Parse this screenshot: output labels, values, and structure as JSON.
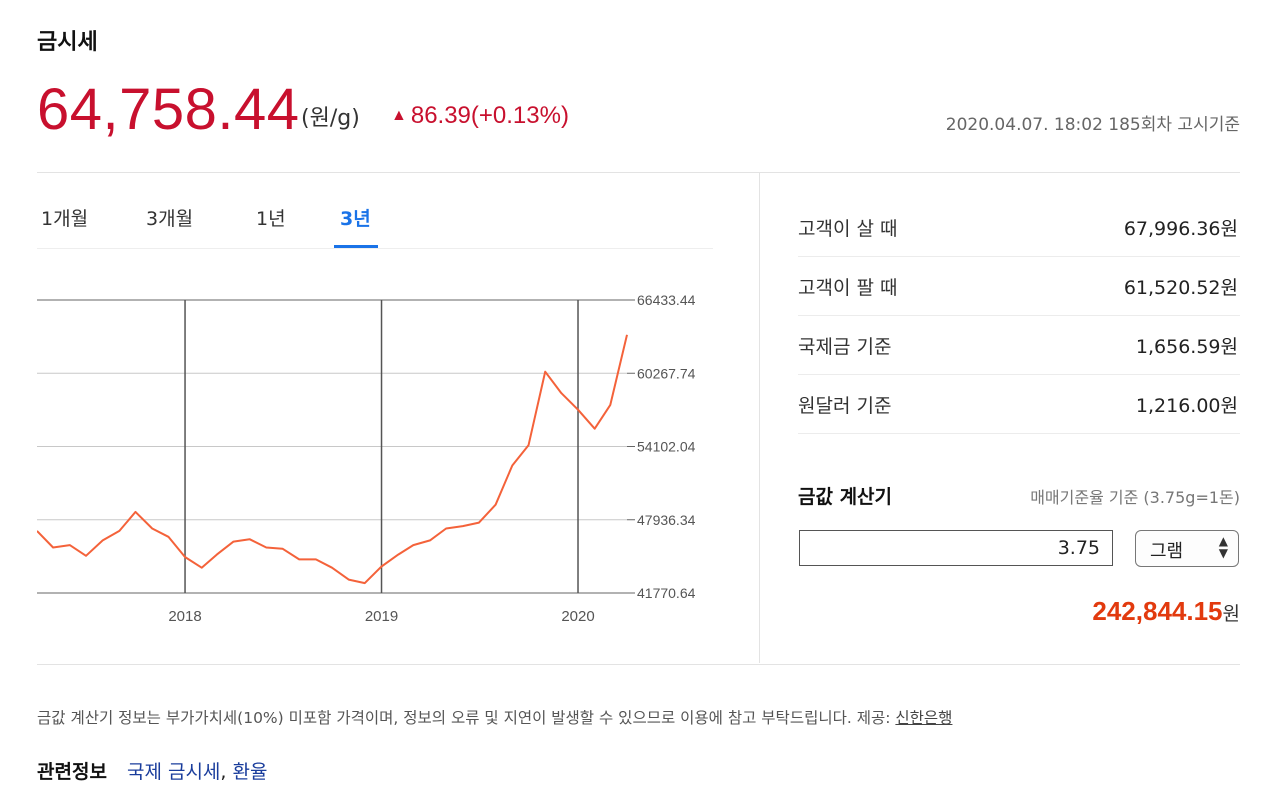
{
  "title": "금시세",
  "price": {
    "value": "64,758.44",
    "unit": "(원/g)",
    "change_symbol": "▲",
    "change": "86.39(+0.13%)",
    "timestamp": "2020.04.07. 18:02 185회차 고시기준",
    "up_color": "#c8102e"
  },
  "tabs": [
    {
      "label": "1개월",
      "active": false
    },
    {
      "label": "3개월",
      "active": false
    },
    {
      "label": "1년",
      "active": false
    },
    {
      "label": "3년",
      "active": true
    }
  ],
  "chart_data": {
    "type": "line",
    "title": "",
    "xlabel": "",
    "ylabel": "",
    "x_tick_labels": [
      "2018",
      "2019",
      "2020"
    ],
    "y_tick_labels": [
      "66433.44",
      "60267.74",
      "54102.04",
      "47936.34",
      "41770.64"
    ],
    "ylim": [
      41770.64,
      66433.44
    ],
    "grid": true,
    "line_color": "#f4623a",
    "series": [
      {
        "x": [
          "2017-04",
          "2017-05",
          "2017-06",
          "2017-07",
          "2017-08",
          "2017-09",
          "2017-10",
          "2017-11",
          "2017-12",
          "2018-01",
          "2018-02",
          "2018-03",
          "2018-04",
          "2018-05",
          "2018-06",
          "2018-07",
          "2018-08",
          "2018-09",
          "2018-10",
          "2018-11",
          "2018-12",
          "2019-01",
          "2019-02",
          "2019-03",
          "2019-04",
          "2019-05",
          "2019-06",
          "2019-07",
          "2019-08",
          "2019-09",
          "2019-10",
          "2019-11",
          "2019-12",
          "2020-01",
          "2020-02",
          "2020-03",
          "2020-04"
        ],
        "values": [
          47000,
          45600,
          45800,
          44900,
          46200,
          47000,
          48600,
          47200,
          46500,
          44800,
          43900,
          45000,
          46100,
          46300,
          45600,
          45500,
          44600,
          44600,
          43900,
          42900,
          42600,
          44000,
          45000,
          45800,
          46200,
          47200,
          47400,
          47700,
          49200,
          52500,
          54200,
          60400,
          58600,
          57200,
          55600,
          57600,
          63500
        ]
      }
    ]
  },
  "quotes": [
    {
      "label": "고객이 살 때",
      "value": "67,996.36원"
    },
    {
      "label": "고객이 팔 때",
      "value": "61,520.52원"
    },
    {
      "label": "국제금 기준",
      "value": "1,656.59원"
    },
    {
      "label": "원달러 기준",
      "value": "1,216.00원"
    }
  ],
  "calculator": {
    "title": "금값 계산기",
    "note": "매매기준율 기준 (3.75g=1돈)",
    "input_value": "3.75",
    "unit_selected": "그램",
    "result": "242,844.15",
    "result_unit": "원"
  },
  "disclaimer": {
    "text": "금값 계산기 정보는 부가가치세(10%) 미포함 가격이며, 정보의 오류 및 지연이 발생할 수 있으므로 이용에 참고 부탁드립니다. 제공: ",
    "provider": "신한은행"
  },
  "related": {
    "label": "관련정보",
    "link1": "국제 금시세",
    "sep": ",",
    "link2": "환율"
  }
}
